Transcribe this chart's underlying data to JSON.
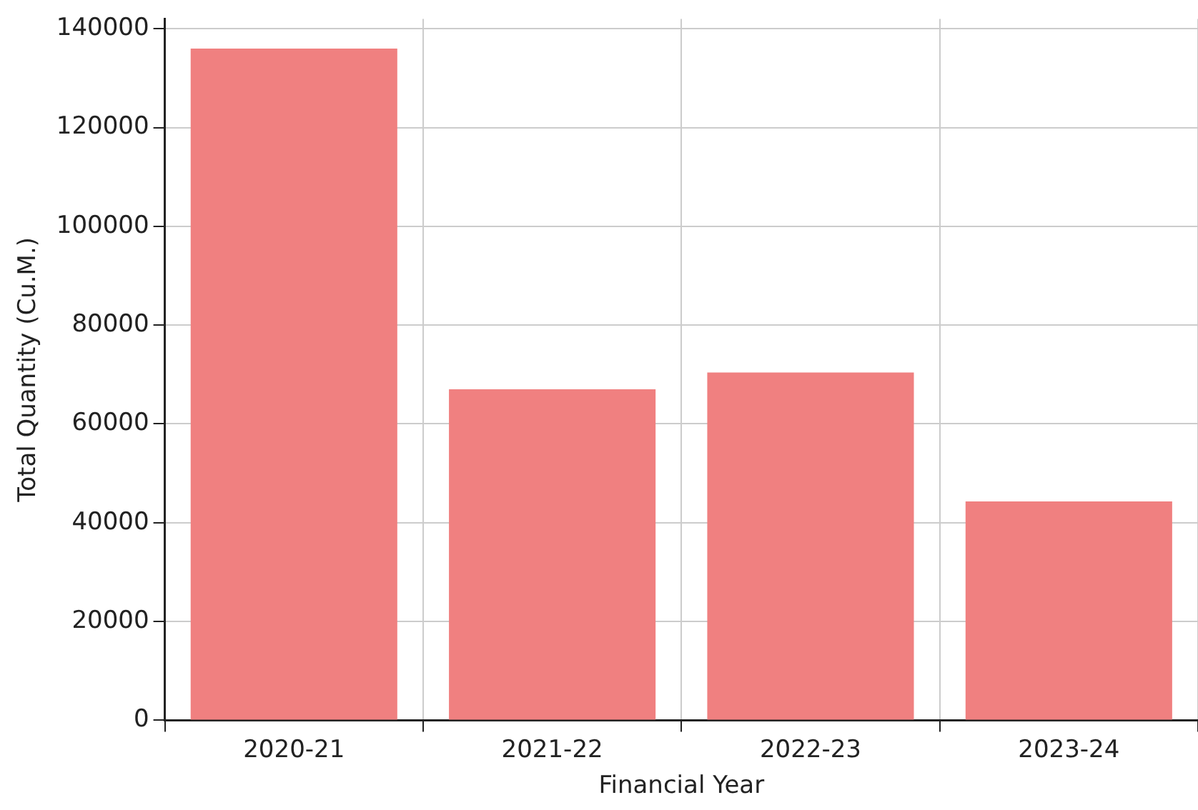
{
  "chart_data": {
    "type": "bar",
    "xlabel": "Financial Year",
    "ylabel": "Total Quantity (Cu.M.)",
    "categories": [
      "2020-21",
      "2021-22",
      "2022-23",
      "2023-24"
    ],
    "values": [
      136000,
      67000,
      70400,
      44300
    ],
    "color": "#f08080",
    "ylim": [
      0,
      142000
    ],
    "yticks": [
      0,
      20000,
      40000,
      60000,
      80000,
      100000,
      120000,
      140000
    ],
    "grid": true
  }
}
